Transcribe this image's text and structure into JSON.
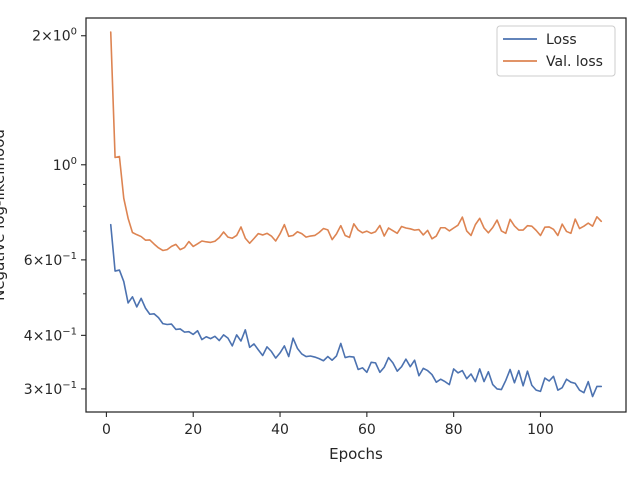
{
  "chart_data": {
    "type": "line",
    "xlabel": "Epochs",
    "ylabel": "Negative log-likelihood",
    "xlim": [
      -4.7,
      119.7
    ],
    "ylim": [
      0.265,
      2.2
    ],
    "yscale": "log",
    "xticks": [
      0,
      20,
      40,
      60,
      80,
      100
    ],
    "yticks": [
      {
        "value": 2.0,
        "base": "2×10",
        "exp": "0"
      },
      {
        "value": 1.0,
        "base": "10",
        "exp": "0"
      },
      {
        "value": 0.6,
        "base": "6×10",
        "exp": "−1"
      },
      {
        "value": 0.4,
        "base": "4×10",
        "exp": "−1"
      },
      {
        "value": 0.3,
        "base": "3×10",
        "exp": "−1"
      }
    ],
    "minor_yticks": [
      0.5,
      0.7,
      0.8,
      0.9
    ],
    "grid": false,
    "legend_position": "top-right",
    "series": [
      {
        "name": "Loss",
        "color": "#4c72b0",
        "x_start": 1,
        "values": [
          0.725,
          0.565,
          0.568,
          0.534,
          0.476,
          0.492,
          0.466,
          0.488,
          0.463,
          0.448,
          0.449,
          0.44,
          0.426,
          0.424,
          0.425,
          0.413,
          0.414,
          0.407,
          0.408,
          0.402,
          0.41,
          0.391,
          0.397,
          0.393,
          0.398,
          0.389,
          0.401,
          0.394,
          0.378,
          0.401,
          0.388,
          0.412,
          0.375,
          0.382,
          0.37,
          0.359,
          0.376,
          0.367,
          0.354,
          0.364,
          0.378,
          0.357,
          0.394,
          0.373,
          0.362,
          0.357,
          0.358,
          0.356,
          0.353,
          0.349,
          0.357,
          0.35,
          0.358,
          0.383,
          0.355,
          0.357,
          0.356,
          0.333,
          0.336,
          0.328,
          0.346,
          0.345,
          0.328,
          0.337,
          0.355,
          0.345,
          0.33,
          0.338,
          0.352,
          0.338,
          0.35,
          0.322,
          0.335,
          0.331,
          0.324,
          0.311,
          0.316,
          0.312,
          0.307,
          0.334,
          0.327,
          0.331,
          0.317,
          0.325,
          0.312,
          0.334,
          0.312,
          0.329,
          0.307,
          0.3,
          0.299,
          0.314,
          0.333,
          0.31,
          0.331,
          0.305,
          0.33,
          0.306,
          0.298,
          0.296,
          0.318,
          0.313,
          0.321,
          0.298,
          0.302,
          0.316,
          0.311,
          0.309,
          0.298,
          0.294,
          0.312,
          0.288,
          0.304,
          0.304
        ]
      },
      {
        "name": "Val. loss",
        "color": "#dd8452",
        "x_start": 1,
        "values": [
          2.04,
          1.04,
          1.045,
          0.835,
          0.75,
          0.695,
          0.687,
          0.68,
          0.667,
          0.668,
          0.653,
          0.64,
          0.631,
          0.634,
          0.645,
          0.652,
          0.634,
          0.641,
          0.662,
          0.645,
          0.654,
          0.664,
          0.661,
          0.659,
          0.663,
          0.676,
          0.697,
          0.678,
          0.674,
          0.684,
          0.716,
          0.674,
          0.656,
          0.673,
          0.691,
          0.686,
          0.692,
          0.682,
          0.664,
          0.69,
          0.725,
          0.681,
          0.684,
          0.698,
          0.691,
          0.678,
          0.682,
          0.684,
          0.695,
          0.71,
          0.705,
          0.669,
          0.69,
          0.721,
          0.684,
          0.677,
          0.728,
          0.704,
          0.694,
          0.7,
          0.692,
          0.698,
          0.722,
          0.682,
          0.712,
          0.702,
          0.692,
          0.718,
          0.712,
          0.709,
          0.704,
          0.706,
          0.686,
          0.703,
          0.672,
          0.682,
          0.713,
          0.713,
          0.701,
          0.712,
          0.723,
          0.755,
          0.701,
          0.684,
          0.725,
          0.75,
          0.712,
          0.694,
          0.714,
          0.743,
          0.701,
          0.692,
          0.746,
          0.72,
          0.704,
          0.704,
          0.721,
          0.719,
          0.703,
          0.684,
          0.715,
          0.716,
          0.707,
          0.684,
          0.727,
          0.699,
          0.692,
          0.747,
          0.71,
          0.719,
          0.731,
          0.719,
          0.756,
          0.738
        ]
      }
    ]
  }
}
